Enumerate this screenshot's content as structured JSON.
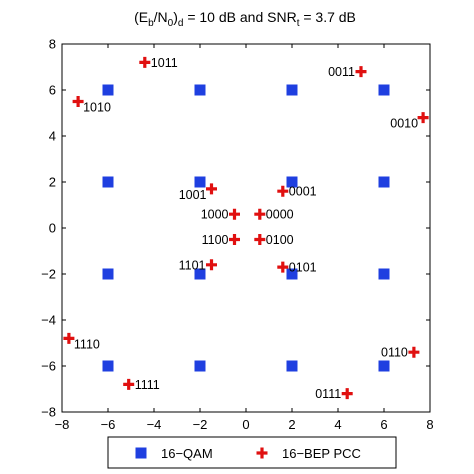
{
  "chart_data": {
    "type": "scatter",
    "title": {
      "parts": [
        {
          "t": "(E",
          "s": "normal"
        },
        {
          "t": "b",
          "s": "sub"
        },
        {
          "t": "/N",
          "s": "normal"
        },
        {
          "t": "0",
          "s": "sub"
        },
        {
          "t": ")",
          "s": "normal"
        },
        {
          "t": "d",
          "s": "sub"
        },
        {
          "t": " = 10 dB and SNR",
          "s": "normal"
        },
        {
          "t": "t",
          "s": "sub"
        },
        {
          "t": " = 3.7 dB",
          "s": "normal"
        }
      ]
    },
    "xlim": [
      -8,
      8
    ],
    "ylim": [
      -8,
      8
    ],
    "xticks": [
      -8,
      -6,
      -4,
      -2,
      0,
      2,
      4,
      6,
      8
    ],
    "yticks": [
      -8,
      -6,
      -4,
      -2,
      0,
      2,
      4,
      6,
      8
    ],
    "xtick_labels": [
      "−8",
      "−6",
      "−4",
      "−2",
      "0",
      "2",
      "4",
      "6",
      "8"
    ],
    "ytick_labels": [
      "−8",
      "−6",
      "−4",
      "−2",
      "0",
      "2",
      "4",
      "6",
      "8"
    ],
    "grid": false,
    "legend_position": "bottom-outside",
    "series": [
      {
        "name": "16−QAM",
        "marker": "square",
        "color": "#1f3fe0",
        "points": [
          {
            "x": -6,
            "y": 6
          },
          {
            "x": -2,
            "y": 6
          },
          {
            "x": 2,
            "y": 6
          },
          {
            "x": 6,
            "y": 6
          },
          {
            "x": -6,
            "y": 2
          },
          {
            "x": -2,
            "y": 2
          },
          {
            "x": 2,
            "y": 2
          },
          {
            "x": 6,
            "y": 2
          },
          {
            "x": -6,
            "y": -2
          },
          {
            "x": -2,
            "y": -2
          },
          {
            "x": 2,
            "y": -2
          },
          {
            "x": 6,
            "y": -2
          },
          {
            "x": -6,
            "y": -6
          },
          {
            "x": -2,
            "y": -6
          },
          {
            "x": 2,
            "y": -6
          },
          {
            "x": 6,
            "y": -6
          }
        ]
      },
      {
        "name": "16−BEP PCC",
        "marker": "plus",
        "color": "#e01010",
        "points": [
          {
            "x": -4.4,
            "y": 7.2,
            "label": "1011",
            "pos": "right"
          },
          {
            "x": -7.3,
            "y": 5.5,
            "label": "1010",
            "pos": "right-below"
          },
          {
            "x": 5.0,
            "y": 6.8,
            "label": "0011",
            "pos": "left"
          },
          {
            "x": 7.7,
            "y": 4.8,
            "label": "0010",
            "pos": "left-below"
          },
          {
            "x": -1.5,
            "y": 1.7,
            "label": "1001",
            "pos": "left-below"
          },
          {
            "x": 1.6,
            "y": 1.6,
            "label": "0001",
            "pos": "right"
          },
          {
            "x": -0.5,
            "y": 0.6,
            "label": "1000",
            "pos": "left"
          },
          {
            "x": 0.6,
            "y": 0.6,
            "label": "0000",
            "pos": "right"
          },
          {
            "x": -0.5,
            "y": -0.5,
            "label": "1100",
            "pos": "left"
          },
          {
            "x": 0.6,
            "y": -0.5,
            "label": "0100",
            "pos": "right"
          },
          {
            "x": -1.5,
            "y": -1.6,
            "label": "1101",
            "pos": "left"
          },
          {
            "x": 1.6,
            "y": -1.7,
            "label": "0101",
            "pos": "right"
          },
          {
            "x": -7.7,
            "y": -4.8,
            "label": "1110",
            "pos": "right-below"
          },
          {
            "x": -5.1,
            "y": -6.8,
            "label": "1111",
            "pos": "right"
          },
          {
            "x": 7.3,
            "y": -5.4,
            "label": "0110",
            "pos": "left"
          },
          {
            "x": 4.4,
            "y": -7.2,
            "label": "0111",
            "pos": "left"
          }
        ]
      }
    ]
  }
}
